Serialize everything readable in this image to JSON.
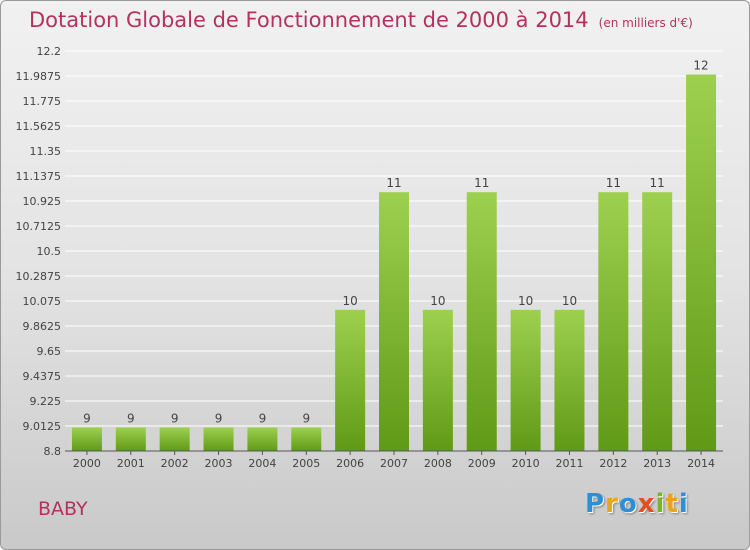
{
  "page": {
    "title": "Dotation Globale de Fonctionnement de 2000 à 2014",
    "unit": "(en milliers d'€)",
    "commune": "BABY",
    "logo_text": "Proxiti"
  },
  "colors": {
    "title": "#b5315f",
    "bar_top": "#9ed04f",
    "bar_bottom": "#5f9a17",
    "logo": [
      "#2f8fd6",
      "#e8a41d",
      "#2f8fd6",
      "#e84e1b",
      "#79b52c",
      "#e8a41d",
      "#2f8fd6"
    ]
  },
  "chart_data": {
    "type": "bar",
    "title": "Dotation Globale de Fonctionnement de 2000 à 2014",
    "subtitle": "(en milliers d'€)",
    "categories": [
      "2000",
      "2001",
      "2002",
      "2003",
      "2004",
      "2005",
      "2006",
      "2007",
      "2008",
      "2009",
      "2010",
      "2011",
      "2012",
      "2013",
      "2014"
    ],
    "values": [
      9,
      9,
      9,
      9,
      9,
      9,
      10,
      11,
      10,
      11,
      10,
      10,
      11,
      11,
      12
    ],
    "data_labels": [
      "9",
      "9",
      "9",
      "9",
      "9",
      "9",
      "10",
      "11",
      "10",
      "11",
      "10",
      "10",
      "11",
      "11",
      "12"
    ],
    "ylim": [
      8.8,
      12.2
    ],
    "yticks": [
      "8.8",
      "9.0125",
      "9.225",
      "9.4375",
      "9.65",
      "9.8625",
      "10.075",
      "10.2875",
      "10.5",
      "10.7125",
      "10.925",
      "11.1375",
      "11.35",
      "11.5625",
      "11.775",
      "11.9875",
      "12.2"
    ],
    "grid": true,
    "legend": "none",
    "xlabel": "",
    "ylabel": ""
  }
}
